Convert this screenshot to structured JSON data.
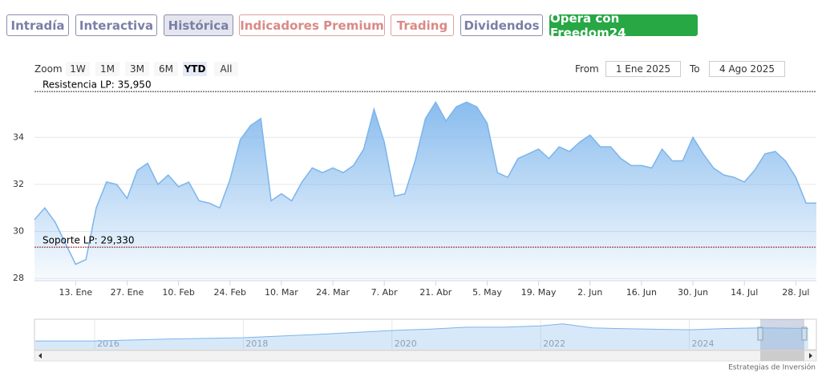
{
  "tabs": [
    "Intradía",
    "Interactiva",
    "Histórica",
    "Indicadores Premium",
    "Trading",
    "Dividendos",
    "Opera con Freedom24"
  ],
  "range_selector": {
    "zoom_label": "Zoom",
    "buttons": [
      "1W",
      "1M",
      "3M",
      "6M",
      "YTD",
      "All"
    ],
    "from_label": "From",
    "from": "1 Ene 2025",
    "to_label": "To",
    "to": "4 Ago 2025"
  },
  "credit": "Estrategias de Inversión",
  "chart_data": [
    {
      "type": "line",
      "color": "#7cb5ec",
      "categories": [
        null,
        null,
        null,
        null,
        "13. Ene",
        null,
        null,
        null,
        null,
        "27. Ene",
        null,
        null,
        null,
        null,
        "10. Feb",
        null,
        null,
        null,
        null,
        "24. Feb",
        null,
        null,
        null,
        null,
        "10. Mar",
        null,
        null,
        null,
        null,
        "24. Mar",
        null,
        null,
        null,
        null,
        "7. Abr",
        null,
        null,
        null,
        null,
        "21. Abr",
        null,
        null,
        null,
        null,
        "5. May",
        null,
        null,
        null,
        null,
        "19. May",
        null,
        null,
        null,
        null,
        "2. Jun",
        null,
        null,
        null,
        null,
        "16. Jun",
        null,
        null,
        null,
        null,
        "30. Jun",
        null,
        null,
        null,
        null,
        "14. Jul",
        null,
        null,
        null,
        null,
        "28. Jul",
        null,
        null
      ],
      "values": [
        30.5,
        31.0,
        30.4,
        29.5,
        28.6,
        28.8,
        31.0,
        32.1,
        32.0,
        31.4,
        32.6,
        32.9,
        32.0,
        32.4,
        31.9,
        32.1,
        31.3,
        31.2,
        31.0,
        32.2,
        33.9,
        34.5,
        34.8,
        31.3,
        31.6,
        31.3,
        32.1,
        32.7,
        32.5,
        32.7,
        32.5,
        32.8,
        33.5,
        35.2,
        33.8,
        31.5,
        31.6,
        33.0,
        34.8,
        35.5,
        34.7,
        35.3,
        35.5,
        35.3,
        34.6,
        32.5,
        32.3,
        33.1,
        33.3,
        33.5,
        33.1,
        33.6,
        33.4,
        33.8,
        34.1,
        33.6,
        33.6,
        33.1,
        32.8,
        32.8,
        32.7,
        33.5,
        33.0,
        33.0,
        34.0,
        33.3,
        32.7,
        32.4,
        32.3,
        32.1,
        32.6,
        33.3,
        33.4,
        33.0,
        32.3,
        31.2,
        31.2
      ],
      "ylim": [
        27.9,
        36.5
      ],
      "yticks": [
        28,
        30,
        32,
        34
      ],
      "grid": true,
      "plot_lines": [
        {
          "value": 35.95,
          "label": "Resistencia LP: 35,950",
          "color": "#333333"
        },
        {
          "value": 29.33,
          "label": "Soporte LP: 29,330",
          "color": "#8b1a1a"
        }
      ]
    },
    {
      "type": "area",
      "color": "#7cb5ec",
      "x": [
        2015.2,
        2016,
        2017,
        2018,
        2019,
        2020,
        2020.5,
        2021,
        2021.5,
        2022,
        2022.3,
        2022.7,
        2023,
        2023.5,
        2024,
        2024.5,
        2025,
        2025.6
      ],
      "values": [
        12,
        12,
        15,
        17,
        22,
        28,
        30,
        33,
        33,
        35,
        38,
        32,
        31,
        30,
        29,
        31,
        32,
        31
      ],
      "xlim": [
        2015.19,
        2025.71
      ],
      "xticks": [
        2016,
        2018,
        2020,
        2022,
        2024
      ],
      "ylim": [
        0,
        45
      ]
    }
  ]
}
